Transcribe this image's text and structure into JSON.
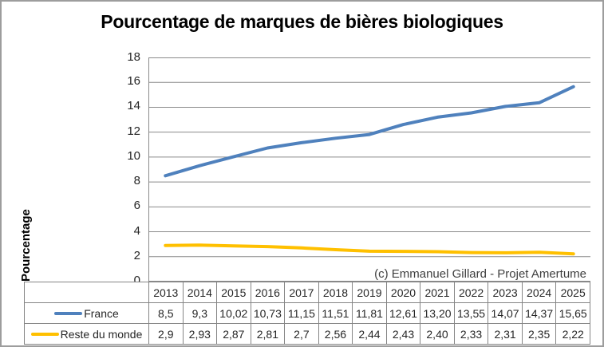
{
  "chart_data": {
    "type": "line",
    "title": "Pourcentage de marques de bières biologiques",
    "ylabel": "Pourcentage",
    "annotation": "(c) Emmanuel Gillard - Projet Amertume",
    "categories": [
      "2013",
      "2014",
      "2015",
      "2016",
      "2017",
      "2018",
      "2019",
      "2020",
      "2021",
      "2022",
      "2023",
      "2024",
      "2025"
    ],
    "series": [
      {
        "name": "France",
        "color": "#4F81BD",
        "values": [
          "8,5",
          "9,3",
          "10,02",
          "10,73",
          "11,15",
          "11,51",
          "11,81",
          "12,61",
          "13,20",
          "13,55",
          "14,07",
          "14,37",
          "15,65"
        ]
      },
      {
        "name": "Reste du monde",
        "color": "#FFC000",
        "values": [
          "2,9",
          "2,93",
          "2,87",
          "2,81",
          "2,7",
          "2,56",
          "2,44",
          "2,43",
          "2,40",
          "2,33",
          "2,31",
          "2,35",
          "2,22"
        ]
      }
    ],
    "ylim": [
      0,
      18
    ],
    "ytick_step": 2,
    "grid": true,
    "gridline_color": "#8a8a8a",
    "legend_position": "table-left"
  }
}
